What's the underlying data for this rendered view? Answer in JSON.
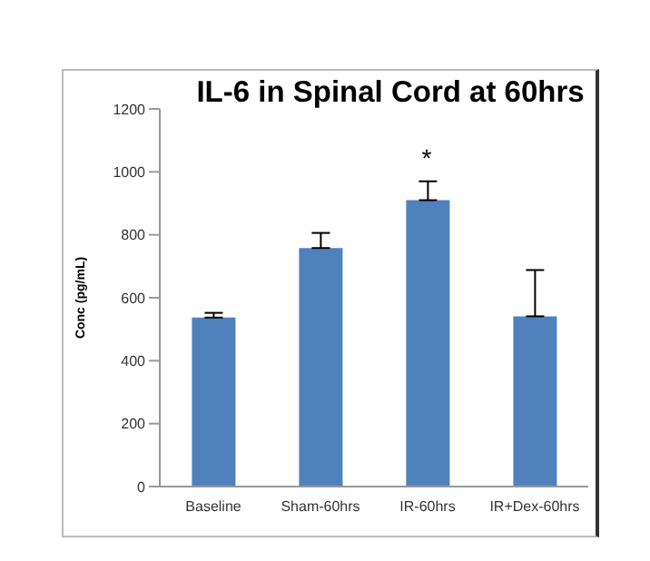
{
  "chart_data": {
    "type": "bar",
    "title": "IL-6 in Spinal Cord at 60hrs",
    "ylabel": "Conc (pg/mL)",
    "categories": [
      "Baseline",
      "Sham-60hrs",
      "IR-60hrs",
      "IR+Dex-60hrs"
    ],
    "values": [
      537,
      758,
      910,
      541
    ],
    "errors": [
      [
        537,
        552
      ],
      [
        758,
        806
      ],
      [
        910,
        970
      ],
      [
        541,
        688
      ]
    ],
    "color": "#4f81bd",
    "ylim": [
      0,
      1200
    ],
    "yticks": [
      0,
      200,
      400,
      600,
      800,
      1000,
      1200
    ],
    "grid": false,
    "legend": false,
    "annotations": [
      "*"
    ]
  }
}
